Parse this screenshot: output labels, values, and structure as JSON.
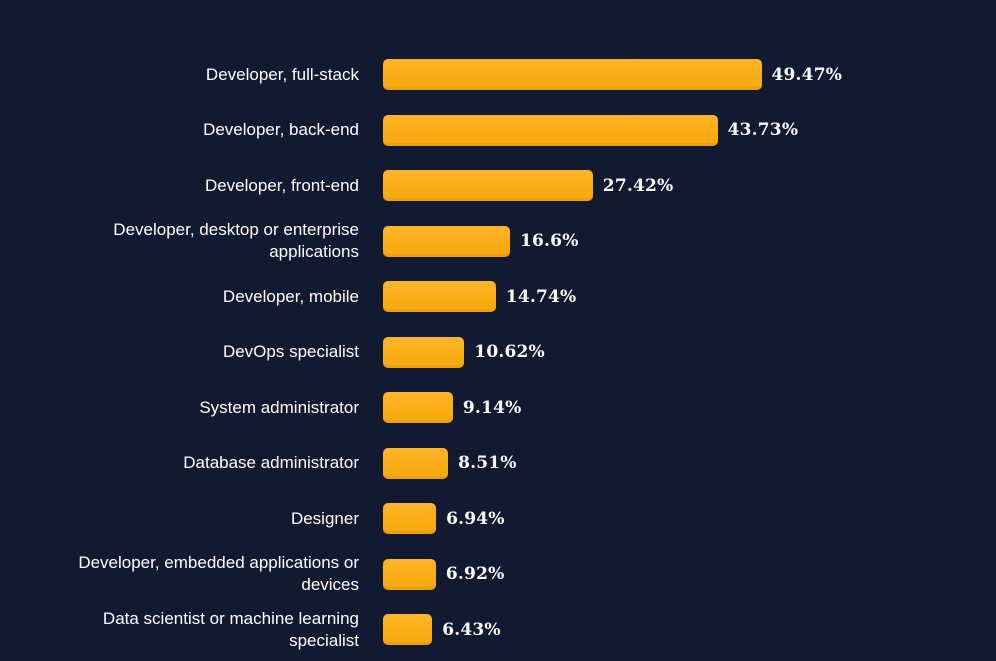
{
  "colors": {
    "background": "#111A31",
    "bar": "#FCAE17",
    "bar_edge": "#ED9F10",
    "text": "#FFFFFF"
  },
  "chart_data": {
    "type": "bar",
    "orientation": "horizontal",
    "title": "",
    "xlabel": "",
    "ylabel": "",
    "grid": false,
    "legend": null,
    "xlim": [
      0,
      52
    ],
    "categories": [
      "Developer, full-stack",
      "Developer, back-end",
      "Developer, front-end",
      "Developer, desktop or enterprise applications",
      "Developer, mobile",
      "DevOps specialist",
      "System administrator",
      "Database administrator",
      "Designer",
      "Developer, embedded applications or devices",
      "Data scientist or machine learning specialist"
    ],
    "values": [
      49.47,
      43.73,
      27.42,
      16.6,
      14.74,
      10.62,
      9.14,
      8.51,
      6.94,
      6.92,
      6.43
    ],
    "value_labels": [
      "49.47%",
      "43.73%",
      "27.42%",
      "16.6%",
      "14.74%",
      "10.62%",
      "9.14%",
      "8.51%",
      "6.94%",
      "6.92%",
      "6.43%"
    ]
  }
}
